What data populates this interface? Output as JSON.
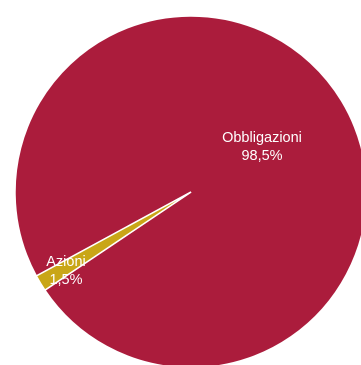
{
  "chart_data": {
    "type": "pie",
    "title": "",
    "slices": [
      {
        "name": "Obbligazioni",
        "value": 98.5,
        "display_value": "98,5%",
        "color": "#ab1c3c"
      },
      {
        "name": "Azioni",
        "value": 1.5,
        "display_value": "1,5%",
        "color": "#c9a617"
      }
    ],
    "legend": "none",
    "data_labels": "inside"
  }
}
